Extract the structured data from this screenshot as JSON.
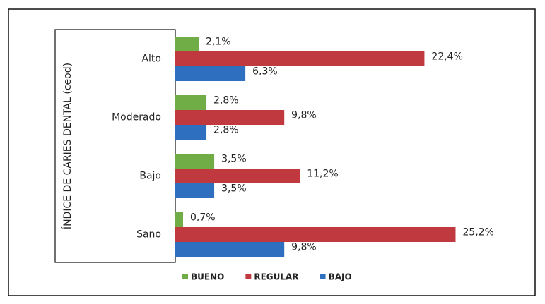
{
  "chart_data": {
    "type": "hbar",
    "y_label": "ÍNDICE DE CARIES DENTAL (ceod)",
    "categories": [
      "Alto",
      "Moderado",
      "Bajo",
      "Sano"
    ],
    "series": [
      {
        "name": "BUENO",
        "color": "#70ad47",
        "values": [
          2.1,
          2.8,
          3.5,
          0.7
        ],
        "value_labels": [
          "2,1%",
          "2,8%",
          "3,5%",
          "0,7%"
        ]
      },
      {
        "name": "REGULAR",
        "color": "#c0393f",
        "values": [
          22.4,
          9.8,
          11.2,
          25.2
        ],
        "value_labels": [
          "22,4%",
          "9,8%",
          "11,2%",
          "25,2%"
        ]
      },
      {
        "name": "BAJO",
        "color": "#2e6fc0",
        "values": [
          6.3,
          2.8,
          3.5,
          9.8
        ],
        "value_labels": [
          "6,3%",
          "2,8%",
          "3,5%",
          "9,8%"
        ]
      }
    ],
    "xlim": [
      0,
      30
    ],
    "legend": "bottom"
  }
}
